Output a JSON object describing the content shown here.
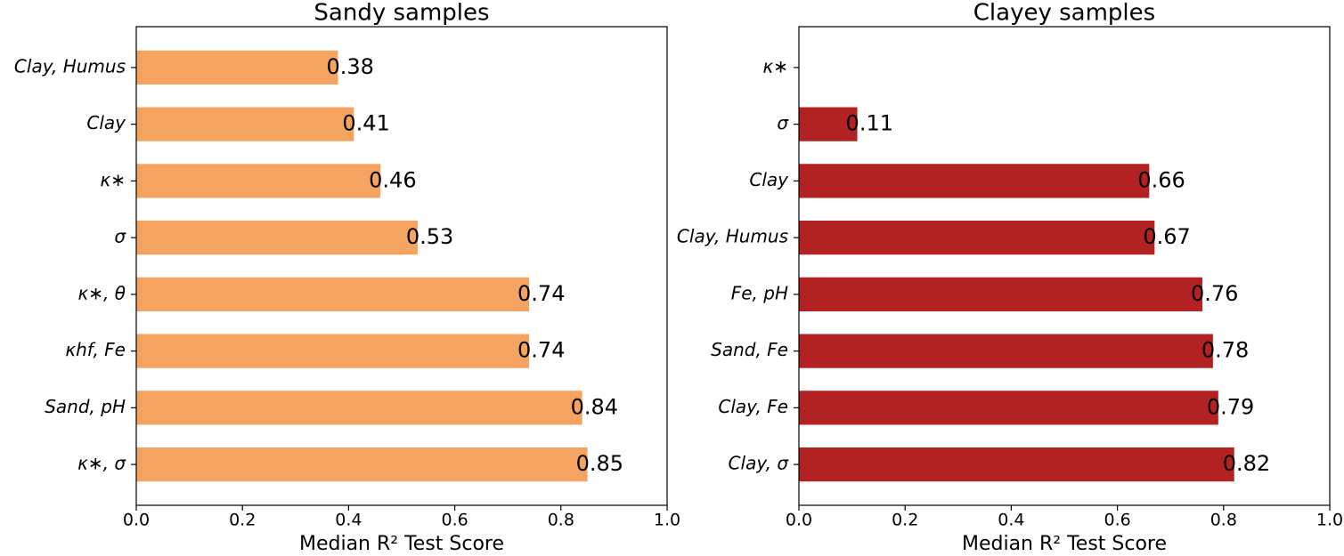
{
  "chart_data": [
    {
      "type": "barh",
      "title": "Sandy samples",
      "xlabel": "Median R² Test Score",
      "color": "#f4a460",
      "categories": [
        "Clay, Humus",
        "Clay",
        "κ∗",
        "σ",
        "κ∗, θ",
        "κhf, Fe",
        "Sand, pH",
        "κ∗, σ"
      ],
      "values": [
        0.38,
        0.41,
        0.46,
        0.53,
        0.74,
        0.74,
        0.84,
        0.85
      ],
      "xlim": [
        0,
        1
      ],
      "xticks": [
        {
          "value": 0,
          "label": "0.0"
        },
        0.2,
        0.4,
        0.6,
        0.8,
        {
          "value": 1,
          "label": "1.0"
        }
      ]
    },
    {
      "type": "barh",
      "title": "Clayey samples",
      "xlabel": "Median R² Test Score",
      "color": "#b22222",
      "categories": [
        "κ∗",
        "σ",
        "Clay",
        "Clay, Humus",
        "Fe, pH",
        "Sand, Fe",
        "Clay, Fe",
        "Clay, σ"
      ],
      "values": [
        null,
        0.11,
        0.66,
        0.67,
        0.76,
        0.78,
        0.79,
        0.82
      ],
      "xlim": [
        0,
        1
      ],
      "xticks": [
        {
          "value": 0,
          "label": "0.0"
        },
        0.2,
        0.4,
        0.6,
        0.8,
        {
          "value": 1,
          "label": "1.0"
        }
      ]
    }
  ]
}
